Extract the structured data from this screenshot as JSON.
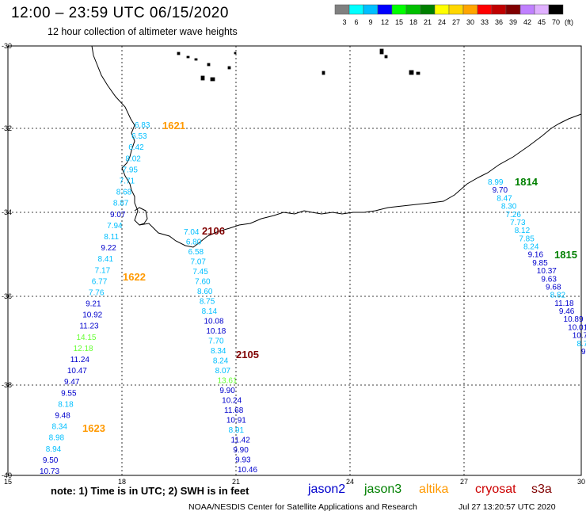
{
  "title": "12:00 – 23:59 UTC 06/15/2020",
  "subtitle": "12 hour collection of altimeter wave heights",
  "scale": {
    "labels": [
      "3",
      "6",
      "9",
      "12",
      "15",
      "18",
      "21",
      "24",
      "27",
      "30",
      "33",
      "36",
      "39",
      "42",
      "45",
      "70"
    ],
    "unit": "(ft)",
    "colors": [
      "#808080",
      "#00ffff",
      "#00bfff",
      "#0000ff",
      "#00ff00",
      "#00c000",
      "#008000",
      "#ffff00",
      "#ffd700",
      "#ffa500",
      "#ff0000",
      "#c00000",
      "#800000",
      "#c080ff",
      "#e0b0ff",
      "#000000"
    ]
  },
  "axes": {
    "lat_labels": [
      "-30",
      "-32",
      "-34",
      "-36",
      "-38",
      "-40"
    ],
    "lon_labels": [
      "15",
      "18",
      "21",
      "24",
      "27",
      "30"
    ]
  },
  "note": "note:  1) Time is in UTC;  2) SWH is in feet",
  "satellites": [
    {
      "name": "jason2",
      "color": "#0000cc"
    },
    {
      "name": "jason3",
      "color": "#008000"
    },
    {
      "name": "altika",
      "color": "#ff9900"
    },
    {
      "name": "cryosat",
      "color": "#cc0000"
    },
    {
      "name": "s3a",
      "color": "#800000"
    }
  ],
  "footer_left": "NOAA/NESDIS Center for Satellite Applications and Research",
  "footer_right": "Jul 27 13:20:57 UTC 2020",
  "map": {
    "time_labels": [
      {
        "text": "1621",
        "color": "#ff9900"
      },
      {
        "text": "1622",
        "color": "#ff9900"
      },
      {
        "text": "1623",
        "color": "#ff9900"
      },
      {
        "text": "2106",
        "color": "#800000"
      },
      {
        "text": "2105",
        "color": "#800000"
      },
      {
        "text": "1814",
        "color": "#008000"
      },
      {
        "text": "1815",
        "color": "#008000"
      }
    ],
    "tracks": {
      "west": [
        "6.83",
        "6.53",
        "6.42",
        "8.02",
        "7.95",
        "7.71",
        "8.68",
        "8.87",
        "9.07",
        "7.94",
        "8.11",
        "9.22",
        "8.41",
        "7.17",
        "6.77",
        "7.76",
        "9.21",
        "10.92",
        "11.23",
        "14.15",
        "12.18",
        "11.24",
        "10.47",
        "9.47",
        "9.55",
        "8.18",
        "9.48",
        "8.34",
        "8.98",
        "8.94",
        "9.50",
        "10.73"
      ],
      "middle": [
        "7.04",
        "6.80",
        "6.58",
        "7.07",
        "7.45",
        "7.60",
        "8.60",
        "8.75",
        "8.14",
        "10.08",
        "10.18",
        "7.70",
        "8.34",
        "8.24",
        "8.07",
        "13.61",
        "9.90",
        "10.24",
        "11.68",
        "10.91",
        "8.91",
        "11.42",
        "9.90",
        "9.93",
        "10.46"
      ],
      "east": [
        "8.99",
        "9.70",
        "8.47",
        "8.30",
        "7.26",
        "7.73",
        "8.12",
        "7.85",
        "8.24",
        "9.16",
        "9.85",
        "10.37",
        "9.63",
        "9.68",
        "8.82",
        "11.18",
        "9.46",
        "10.89",
        "10.01",
        "10.7",
        "8.7",
        "9"
      ]
    }
  }
}
